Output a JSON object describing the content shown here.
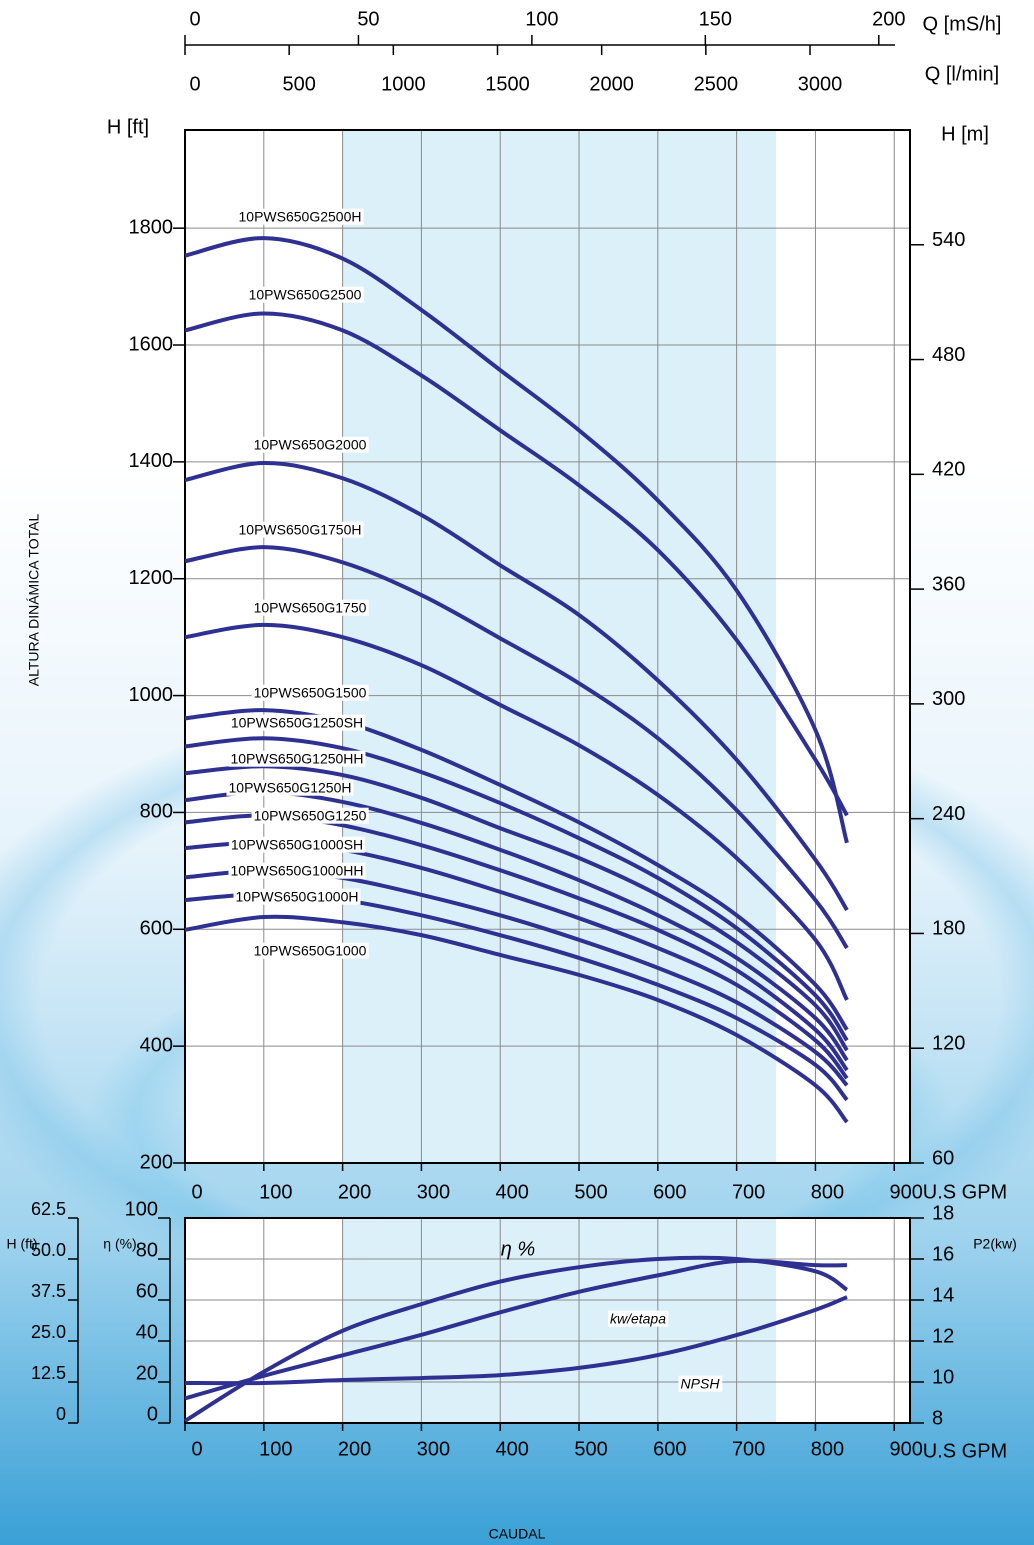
{
  "chart_data": [
    {
      "type": "line",
      "ylabel": "H [ft]",
      "y2label": "H [m]",
      "xlabel": "U.S GPM",
      "yaxis_title": "ALTURA DINÁMICA TOTAL",
      "x": [
        0,
        100,
        200,
        300,
        400,
        500,
        600,
        700,
        800,
        840
      ],
      "xlim": [
        0,
        920
      ],
      "xticks": [
        0,
        100,
        200,
        300,
        400,
        500,
        600,
        700,
        800,
        900
      ],
      "ylim": [
        200,
        1968
      ],
      "yticks": [
        200,
        400,
        600,
        800,
        1000,
        1200,
        1400,
        1600,
        1800
      ],
      "y2lim": [
        60,
        600
      ],
      "y2ticks": [
        60,
        120,
        180,
        240,
        300,
        360,
        420,
        480,
        540
      ],
      "highlight": [
        200,
        750
      ],
      "highlight_color": "#dcf0fa",
      "grid": true,
      "top_axes": [
        {
          "label": "Q [mS/h]",
          "lim": [
            0,
            209
          ],
          "ticks": [
            0,
            50,
            100,
            150,
            200
          ]
        },
        {
          "label": "Q [l/min]",
          "lim": [
            0,
            3480
          ],
          "ticks": [
            0,
            500,
            1000,
            1500,
            2000,
            2500,
            3000
          ]
        }
      ],
      "series": [
        {
          "name": "10PWS650G2500H",
          "color": "#2e3192",
          "values": [
            1753,
            1783,
            1748,
            1660,
            1557,
            1454,
            1334,
            1180,
            941,
            748
          ]
        },
        {
          "name": "10PWS650G2500",
          "color": "#2e3192",
          "values": [
            1625,
            1654,
            1625,
            1548,
            1454,
            1360,
            1249,
            1095,
            890,
            795
          ]
        },
        {
          "name": "10PWS650G2000",
          "color": "#2e3192",
          "values": [
            1369,
            1398,
            1372,
            1309,
            1223,
            1138,
            1026,
            890,
            719,
            633
          ]
        },
        {
          "name": "10PWS650G1750H",
          "color": "#2e3192",
          "values": [
            1230,
            1254,
            1228,
            1172,
            1098,
            1021,
            927,
            804,
            650,
            568
          ]
        },
        {
          "name": "10PWS650G1750",
          "color": "#2e3192",
          "values": [
            1100,
            1121,
            1100,
            1052,
            984,
            915,
            830,
            722,
            582,
            479
          ]
        },
        {
          "name": "10PWS650G1500",
          "color": "#2e3192",
          "values": [
            961,
            975,
            955,
            907,
            847,
            783,
            710,
            624,
            505,
            428
          ]
        },
        {
          "name": "10PWS650G1250SH",
          "color": "#2e3192",
          "values": [
            913,
            927,
            910,
            869,
            816,
            756,
            688,
            602,
            487,
            410
          ]
        },
        {
          "name": "10PWS650G1250HH",
          "color": "#2e3192",
          "values": [
            867,
            879,
            864,
            825,
            773,
            722,
            659,
            578,
            470,
            393
          ]
        },
        {
          "name": "10PWS650G1250H",
          "color": "#2e3192",
          "values": [
            821,
            835,
            818,
            782,
            736,
            684,
            624,
            551,
            448,
            376
          ]
        },
        {
          "name": "10PWS650G1250",
          "color": "#2e3192",
          "values": [
            783,
            795,
            778,
            744,
            701,
            653,
            599,
            530,
            428,
            359
          ]
        },
        {
          "name": "10PWS650G1000SH",
          "color": "#2e3192",
          "values": [
            739,
            749,
            736,
            705,
            664,
            619,
            568,
            505,
            410,
            345
          ]
        },
        {
          "name": "10PWS650G1000HH",
          "color": "#2e3192",
          "values": [
            689,
            700,
            688,
            659,
            624,
            582,
            534,
            475,
            390,
            333
          ]
        },
        {
          "name": "10PWS650G1000H",
          "color": "#2e3192",
          "values": [
            650,
            660,
            650,
            624,
            590,
            551,
            505,
            448,
            368,
            308
          ]
        },
        {
          "name": "10PWS650G1000",
          "color": "#2e3192",
          "values": [
            599,
            621,
            612,
            590,
            556,
            522,
            479,
            419,
            333,
            270
          ]
        }
      ]
    },
    {
      "type": "line",
      "ylabel": "η (%)",
      "y2label": "P2(kw)",
      "y3label": "H (ft)",
      "xlabel": "U.S GPM",
      "x": [
        0,
        100,
        200,
        300,
        400,
        500,
        600,
        700,
        800,
        840
      ],
      "xlim": [
        0,
        920
      ],
      "xticks": [
        0,
        100,
        200,
        300,
        400,
        500,
        600,
        700,
        800,
        900
      ],
      "ylim": [
        0,
        100
      ],
      "yticks": [
        0,
        20,
        40,
        60,
        80,
        100
      ],
      "y2lim": [
        8,
        18
      ],
      "y2ticks": [
        8,
        10,
        12,
        14,
        16,
        18
      ],
      "y3lim": [
        0,
        62.5
      ],
      "y3ticks": [
        0,
        12.5,
        {
          "value": 25,
          "label": "25.0"
        },
        37.5,
        {
          "value": 50,
          "label": "50.0"
        },
        62.5
      ],
      "highlight": [
        200,
        750
      ],
      "highlight_color": "#dcf0fa",
      "grid": true,
      "series": [
        {
          "name": "η %",
          "color": "#2e3192",
          "axis": "y",
          "values": [
            1,
            25,
            45,
            58,
            69,
            76,
            80,
            80,
            74,
            65
          ]
        },
        {
          "name": "kw/etapa",
          "color": "#2e3192",
          "axis": "y2",
          "values": [
            9.2,
            10.3,
            11.3,
            12.3,
            13.4,
            14.4,
            15.2,
            15.9,
            15.7,
            15.7
          ]
        },
        {
          "name": "NPSH",
          "color": "#2e3192",
          "axis": "y3",
          "values": [
            12.2,
            12.2,
            13.1,
            13.7,
            14.6,
            16.8,
            20.7,
            26.8,
            34.5,
            38.4
          ]
        }
      ]
    }
  ],
  "footer": "CAUDAL"
}
